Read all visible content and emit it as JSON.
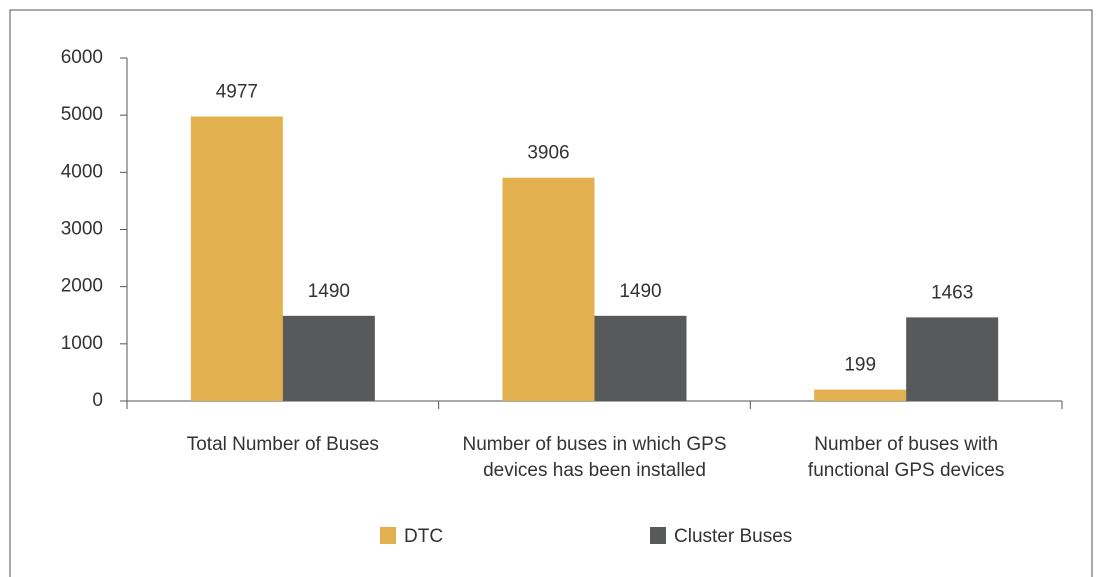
{
  "chart_data": {
    "type": "bar",
    "categories": [
      "Total Number of Buses",
      "Number of buses in which GPS devices has been installed",
      "Number of buses with functional GPS devices"
    ],
    "series": [
      {
        "name": "DTC",
        "color": "#e3b04f",
        "values": [
          4977,
          3906,
          199
        ]
      },
      {
        "name": "Cluster Buses",
        "color": "#58595b",
        "values": [
          1490,
          1490,
          1463
        ]
      }
    ],
    "ylim": [
      0,
      6000
    ],
    "yticks": [
      0,
      1000,
      2000,
      3000,
      4000,
      5000,
      6000
    ],
    "legend": "bottom"
  }
}
